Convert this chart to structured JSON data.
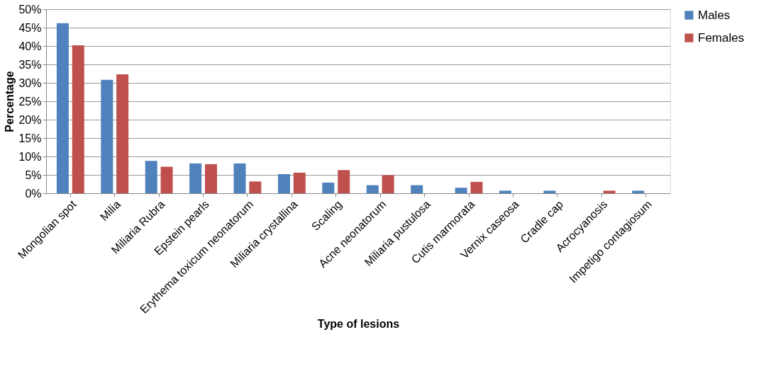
{
  "chart_data": {
    "type": "bar",
    "xlabel": "Type of lesions",
    "ylabel": "Percentage",
    "categories": [
      "Mongolian spot",
      "Milia",
      "Miliaria Rubra",
      "Epstein pearls",
      "Erythema toxicum neonatorum",
      "Miliaria crystallina",
      "Scaling",
      "Acne neonatorum",
      "Miliaria pustulosa",
      "Cutis marmorata",
      "Vernix caseosa",
      "Cradle cap",
      "Acrocyanosis",
      "Impetigo contagiosum"
    ],
    "series": [
      {
        "name": "Males",
        "color": "#4f81bd",
        "values": [
          46.2,
          30.8,
          8.8,
          8.1,
          8.1,
          5.2,
          2.9,
          2.2,
          2.2,
          1.5,
          0.7,
          0.7,
          null,
          0.7
        ]
      },
      {
        "name": "Females",
        "color": "#c0504d",
        "values": [
          40.2,
          32.3,
          7.2,
          7.9,
          3.2,
          5.6,
          6.3,
          4.9,
          null,
          3.1,
          null,
          null,
          0.7,
          null
        ]
      }
    ],
    "ylim": [
      0,
      50
    ],
    "yticks": [
      {
        "value": 0,
        "label": "0%"
      },
      {
        "value": 5,
        "label": "5%"
      },
      {
        "value": 10,
        "label": "10%"
      },
      {
        "value": 15,
        "label": "15%"
      },
      {
        "value": 20,
        "label": "20%"
      },
      {
        "value": 25,
        "label": "25%"
      },
      {
        "value": 30,
        "label": "30%"
      },
      {
        "value": 35,
        "label": "35%"
      },
      {
        "value": 40,
        "label": "40%"
      },
      {
        "value": 45,
        "label": "45%"
      },
      {
        "value": 50,
        "label": "50%"
      }
    ],
    "grid": "y",
    "legend": "right"
  }
}
